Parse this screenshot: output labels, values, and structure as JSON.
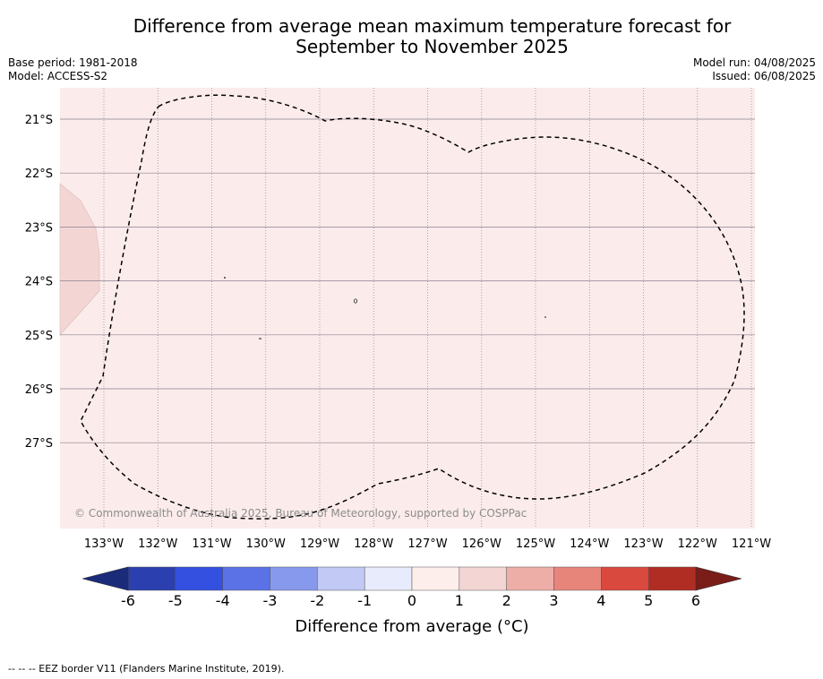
{
  "title_line1": "Difference from average mean maximum temperature forecast for",
  "title_line2": "September to November 2025",
  "base_period": "Base period: 1981-2018",
  "model": "Model: ACCESS-S2",
  "model_run": "Model run: 04/08/2025",
  "issued": "Issued: 06/08/2025",
  "copyright": "© Commonwealth of Australia 2025, Bureau of Meteorology, supported by COSPPac",
  "footnote": "--  --  -- EEZ border V11 (Flanders Marine Institute, 2019).",
  "map": {
    "lon_labels": [
      "133°W",
      "132°W",
      "131°W",
      "130°W",
      "129°W",
      "128°W",
      "127°W",
      "126°W",
      "125°W",
      "124°W",
      "123°W",
      "122°W",
      "121°W"
    ],
    "lat_labels": [
      "21°S",
      "22°S",
      "23°S",
      "24°S",
      "25°S",
      "26°S",
      "27°S"
    ],
    "background_color": "#fbeceb",
    "patch_color": "#f3d6d4"
  },
  "colorbar": {
    "title": "Difference from average (",
    "title_unit": "°C)",
    "labels": [
      "-6",
      "-5",
      "-4",
      "-3",
      "-2",
      "-1",
      "0",
      "1",
      "2",
      "3",
      "4",
      "5",
      "6"
    ],
    "colors": [
      "#2b3faf",
      "#3350e0",
      "#5a72e6",
      "#8799ec",
      "#c2c9f5",
      "#e8ebfb",
      "#fdeeec",
      "#f3d6d4",
      "#eeaea8",
      "#e8857b",
      "#d9493e",
      "#b02d24"
    ],
    "low_extend_color": "#1a2b7a",
    "high_extend_color": "#7a1c18"
  }
}
